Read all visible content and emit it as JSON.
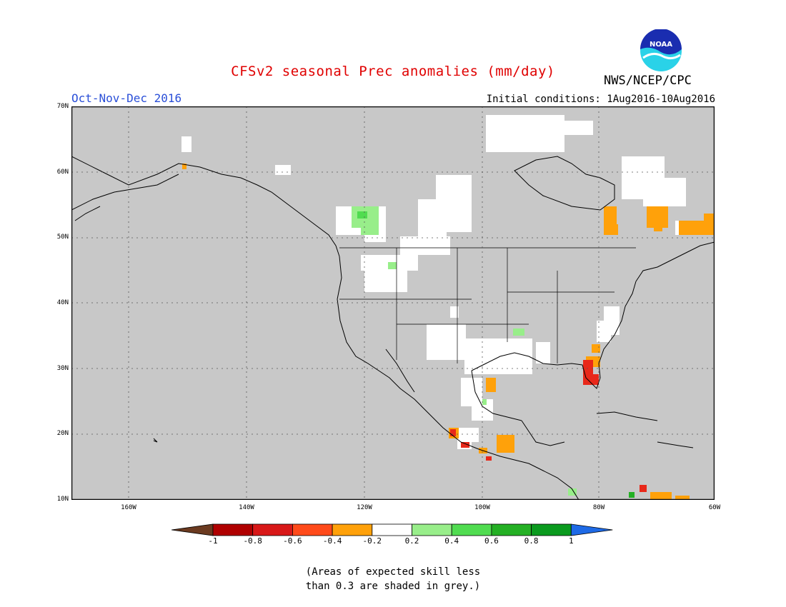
{
  "title": "CFSv2 seasonal Prec anomalies (mm/day)",
  "agency": "NWS/NCEP/CPC",
  "logo_text": "NOAA",
  "season": "Oct-Nov-Dec 2016",
  "initial_conditions": "Initial conditions: 1Aug2016-10Aug2016",
  "lat_labels": [
    "70N",
    "60N",
    "50N",
    "40N",
    "30N",
    "20N",
    "10N"
  ],
  "lon_labels": [
    "160W",
    "140W",
    "120W",
    "100W",
    "80W",
    "60W"
  ],
  "colorbar": {
    "labels": [
      "-1",
      "-0.8",
      "-0.6",
      "-0.4",
      "-0.2",
      "0.2",
      "0.4",
      "0.6",
      "0.8",
      "1"
    ],
    "colors": [
      "#6b3a20",
      "#b00000",
      "#d81818",
      "#ff4a1a",
      "#ffa10a",
      "#ffffff",
      "#98ee8a",
      "#50dc50",
      "#24b024",
      "#0a9a1e",
      "#1e6ae6"
    ]
  },
  "note_lines": [
    "(Areas of expected skill less",
    "than 0.3 are shaded in grey.)"
  ],
  "map_colors": {
    "grey": "#c8c8c8",
    "neutral": "#ffffff",
    "orange": "#ffa10a",
    "red": "#e8281a",
    "lightgreen": "#98ee8a",
    "green": "#24b024"
  }
}
